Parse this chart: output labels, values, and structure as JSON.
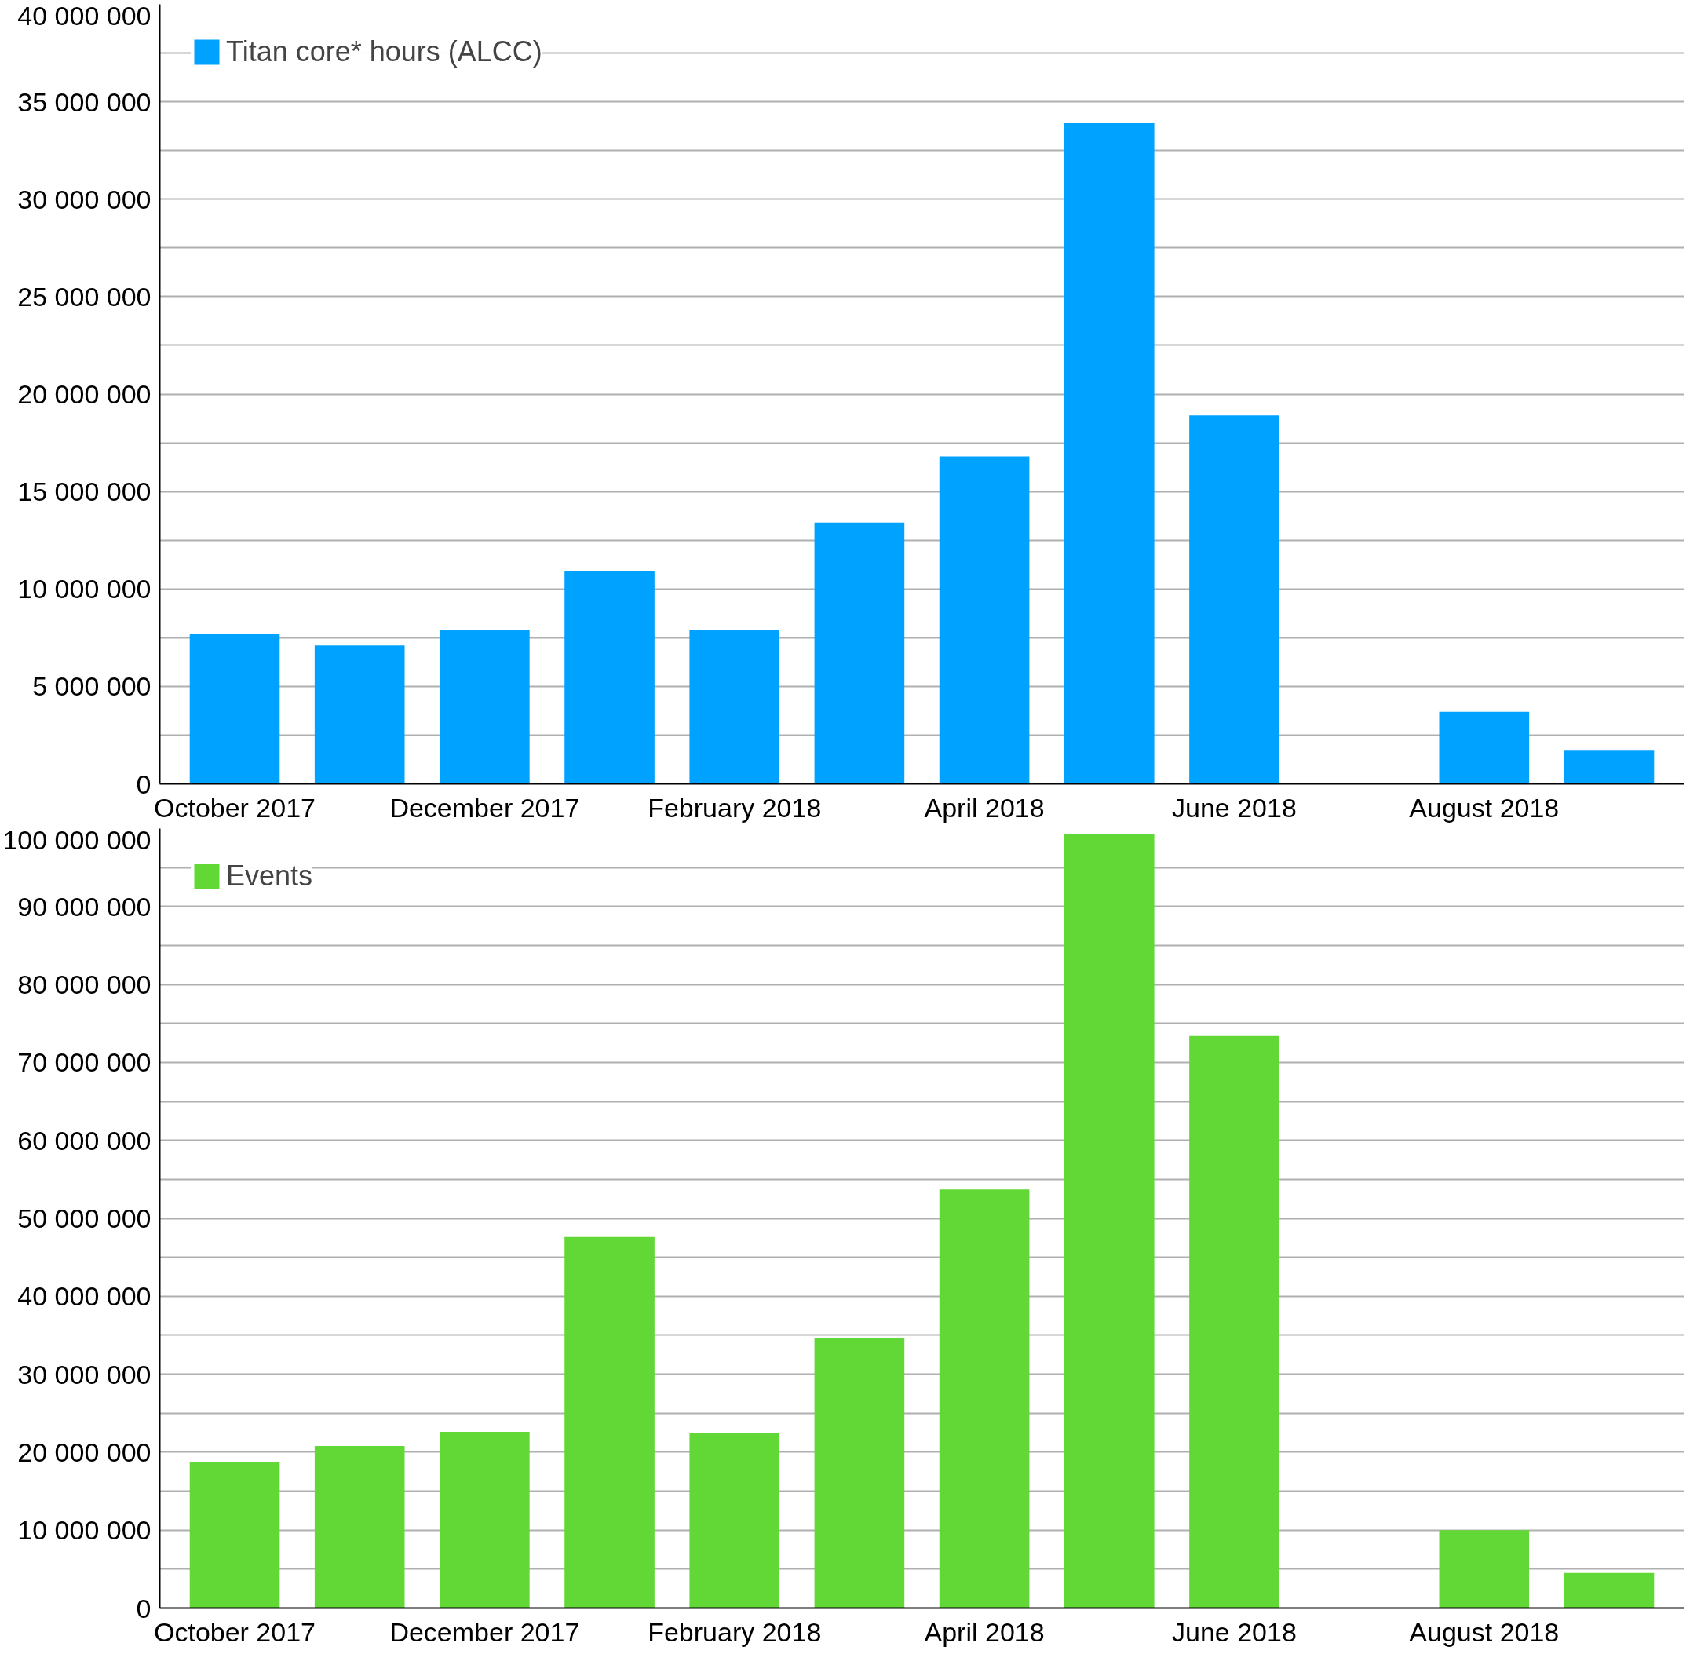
{
  "chart_data": [
    {
      "type": "bar",
      "categories": [
        "October 2017",
        null,
        "December 2017",
        null,
        "February 2018",
        null,
        "April 2018",
        null,
        "June 2018",
        null,
        "August 2018",
        null
      ],
      "series": [
        {
          "name": "Titan core* hours (ALCC)",
          "color": "#00a2ff",
          "values": [
            7700000,
            7100000,
            7900000,
            10900000,
            7900000,
            13400000,
            16800000,
            33900000,
            18900000,
            null,
            3700000,
            1700000
          ]
        }
      ],
      "ylim": [
        0,
        40000000
      ],
      "yticks": [
        {
          "value": 0,
          "label": "0"
        },
        {
          "value": 2500000,
          "label": null
        },
        {
          "value": 5000000,
          "label": "5 000 000"
        },
        {
          "value": 7500000,
          "label": null
        },
        {
          "value": 10000000,
          "label": "10 000 000"
        },
        {
          "value": 12500000,
          "label": null
        },
        {
          "value": 15000000,
          "label": "15 000 000"
        },
        {
          "value": 17500000,
          "label": null
        },
        {
          "value": 20000000,
          "label": "20 000 000"
        },
        {
          "value": 22500000,
          "label": null
        },
        {
          "value": 25000000,
          "label": "25 000 000"
        },
        {
          "value": 27500000,
          "label": null
        },
        {
          "value": 30000000,
          "label": "30 000 000"
        },
        {
          "value": 32500000,
          "label": null
        },
        {
          "value": 35000000,
          "label": "35 000 000"
        },
        {
          "value": 37500000,
          "label": null
        },
        {
          "value": 40000000,
          "label": "40 000 000"
        }
      ],
      "grid": "y",
      "legend": "top left"
    },
    {
      "type": "bar",
      "categories": [
        "October 2017",
        null,
        "December 2017",
        null,
        "February 2018",
        null,
        "April 2018",
        null,
        "June 2018",
        null,
        "August 2018",
        null
      ],
      "series": [
        {
          "name": "Events",
          "color": "#61d836",
          "values": [
            18700000,
            20800000,
            22600000,
            47600000,
            22400000,
            34600000,
            53700000,
            99300000,
            73400000,
            null,
            10000000,
            4500000
          ]
        }
      ],
      "ylim": [
        0,
        100000000
      ],
      "yticks": [
        {
          "value": 0,
          "label": "0"
        },
        {
          "value": 5000000,
          "label": null
        },
        {
          "value": 10000000,
          "label": "10 000 000"
        },
        {
          "value": 15000000,
          "label": null
        },
        {
          "value": 20000000,
          "label": "20 000 000"
        },
        {
          "value": 25000000,
          "label": null
        },
        {
          "value": 30000000,
          "label": "30 000 000"
        },
        {
          "value": 35000000,
          "label": null
        },
        {
          "value": 40000000,
          "label": "40 000 000"
        },
        {
          "value": 45000000,
          "label": null
        },
        {
          "value": 50000000,
          "label": "50 000 000"
        },
        {
          "value": 55000000,
          "label": null
        },
        {
          "value": 60000000,
          "label": "60 000 000"
        },
        {
          "value": 65000000,
          "label": null
        },
        {
          "value": 70000000,
          "label": "70 000 000"
        },
        {
          "value": 75000000,
          "label": null
        },
        {
          "value": 80000000,
          "label": "80 000 000"
        },
        {
          "value": 85000000,
          "label": null
        },
        {
          "value": 90000000,
          "label": "90 000 000"
        },
        {
          "value": 95000000,
          "label": null
        },
        {
          "value": 100000000,
          "label": "100 000 000"
        }
      ],
      "grid": "y",
      "legend": "top left"
    }
  ]
}
